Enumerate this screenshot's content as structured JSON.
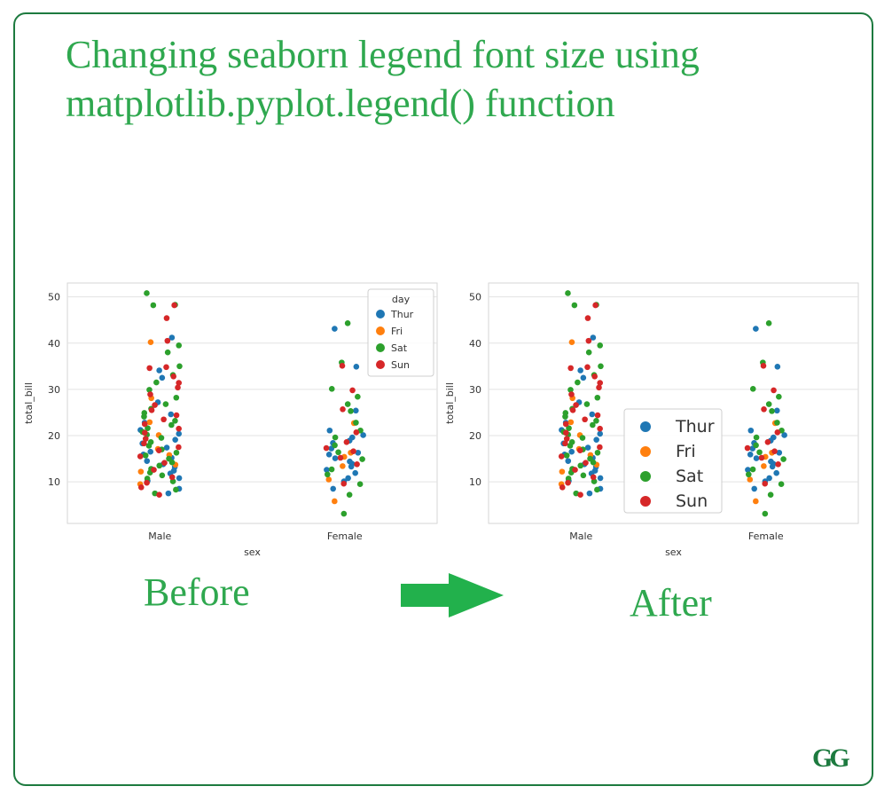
{
  "title": "Changing seaborn legend font size using matplotlib.pyplot.legend() function",
  "captions": {
    "before": "Before",
    "after": "After"
  },
  "logo": "GG",
  "colors": {
    "accent": "#2fa84f",
    "frame": "#1d7a3f",
    "arrow": "#22b14c",
    "Thur": "#1f77b4",
    "Fri": "#ff7f0e",
    "Sat": "#2ca02c",
    "Sun": "#d62728"
  },
  "chart_data": [
    {
      "type": "scatter",
      "subtype": "stripplot",
      "panel": "before",
      "xlabel": "sex",
      "ylabel": "total_bill",
      "categories": [
        "Male",
        "Female"
      ],
      "yticks": [
        10,
        20,
        30,
        40,
        50
      ],
      "ylim": [
        1,
        53
      ],
      "grid": true,
      "legend": {
        "title": "day",
        "position": "top-right",
        "size": "small",
        "entries": [
          "Thur",
          "Fri",
          "Sat",
          "Sun"
        ]
      },
      "series": [
        {
          "name": "Thur",
          "Male": [
            7.5,
            8.5,
            10.2,
            10.8,
            11.8,
            12.4,
            13.2,
            13.8,
            14.5,
            15.2,
            15.9,
            16.5,
            17.4,
            18.3,
            19.1,
            20.4,
            21.2,
            22.8,
            24.6,
            27.2,
            32.5,
            34.1,
            41.2
          ],
          "Female": [
            8.5,
            10.1,
            10.8,
            11.9,
            12.6,
            13.3,
            13.9,
            14.4,
            15.1,
            15.9,
            16.3,
            17.2,
            18.4,
            18.9,
            19.6,
            20.1,
            21.1,
            25.4,
            34.9,
            43.1
          ]
        },
        {
          "name": "Fri",
          "Male": [
            9.5,
            12.2,
            13.7,
            15.8,
            17.1,
            20.1,
            22.9,
            28.1,
            40.2
          ],
          "Female": [
            5.8,
            10.5,
            13.4,
            15.4,
            16.3,
            22.7
          ]
        },
        {
          "name": "Sat",
          "Male": [
            7.5,
            8.3,
            10.1,
            10.7,
            11.4,
            12.0,
            12.8,
            13.5,
            14.2,
            15.0,
            15.7,
            16.3,
            17.0,
            17.8,
            18.6,
            19.5,
            20.2,
            20.8,
            21.6,
            22.3,
            23.2,
            24.1,
            24.9,
            25.8,
            26.8,
            28.2,
            29.9,
            31.5,
            33.1,
            35.0,
            38.0,
            39.5,
            48.3,
            48.2,
            50.8
          ],
          "Female": [
            3.1,
            7.2,
            9.5,
            11.6,
            12.7,
            14.9,
            16.4,
            17.9,
            19.6,
            21.1,
            22.8,
            25.3,
            26.8,
            28.4,
            30.1,
            35.8,
            44.3
          ]
        },
        {
          "name": "Sun",
          "Male": [
            7.2,
            8.8,
            9.8,
            11.0,
            12.6,
            14.1,
            15.5,
            16.8,
            17.5,
            18.3,
            19.3,
            20.6,
            21.5,
            22.5,
            23.5,
            24.4,
            25.5,
            26.6,
            28.9,
            30.4,
            31.4,
            32.8,
            34.8,
            34.6,
            40.5,
            45.4,
            48.2
          ],
          "Female": [
            9.6,
            13.8,
            15.2,
            16.6,
            17.3,
            18.6,
            20.7,
            25.7,
            29.8,
            35.1
          ]
        }
      ]
    },
    {
      "type": "scatter",
      "subtype": "stripplot",
      "panel": "after",
      "xlabel": "sex",
      "ylabel": "total_bill",
      "categories": [
        "Male",
        "Female"
      ],
      "yticks": [
        10,
        20,
        30,
        40,
        50
      ],
      "ylim": [
        1,
        53
      ],
      "grid": true,
      "legend": {
        "position": "center",
        "size": "large",
        "entries": [
          "Thur",
          "Fri",
          "Sat",
          "Sun"
        ]
      },
      "series": [
        {
          "name": "Thur",
          "Male": [
            7.5,
            8.5,
            10.2,
            10.8,
            11.8,
            12.4,
            13.2,
            13.8,
            14.5,
            15.2,
            15.9,
            16.5,
            17.4,
            18.3,
            19.1,
            20.4,
            21.2,
            22.8,
            24.6,
            27.2,
            32.5,
            34.1,
            41.2
          ],
          "Female": [
            8.5,
            10.1,
            10.8,
            11.9,
            12.6,
            13.3,
            13.9,
            14.4,
            15.1,
            15.9,
            16.3,
            17.2,
            18.4,
            18.9,
            19.6,
            20.1,
            21.1,
            25.4,
            34.9,
            43.1
          ]
        },
        {
          "name": "Fri",
          "Male": [
            9.5,
            12.2,
            13.7,
            15.8,
            17.1,
            20.1,
            22.9,
            28.1,
            40.2
          ],
          "Female": [
            5.8,
            10.5,
            13.4,
            15.4,
            16.3,
            22.7
          ]
        },
        {
          "name": "Sat",
          "Male": [
            7.5,
            8.3,
            10.1,
            10.7,
            11.4,
            12.0,
            12.8,
            13.5,
            14.2,
            15.0,
            15.7,
            16.3,
            17.0,
            17.8,
            18.6,
            19.5,
            20.2,
            20.8,
            21.6,
            22.3,
            23.2,
            24.1,
            24.9,
            25.8,
            26.8,
            28.2,
            29.9,
            31.5,
            33.1,
            35.0,
            38.0,
            39.5,
            48.3,
            48.2,
            50.8
          ],
          "Female": [
            3.1,
            7.2,
            9.5,
            11.6,
            12.7,
            14.9,
            16.4,
            17.9,
            19.6,
            21.1,
            22.8,
            25.3,
            26.8,
            28.4,
            30.1,
            35.8,
            44.3
          ]
        },
        {
          "name": "Sun",
          "Male": [
            7.2,
            8.8,
            9.8,
            11.0,
            12.6,
            14.1,
            15.5,
            16.8,
            17.5,
            18.3,
            19.3,
            20.6,
            21.5,
            22.5,
            23.5,
            24.4,
            25.5,
            26.6,
            28.9,
            30.4,
            31.4,
            32.8,
            34.8,
            34.6,
            40.5,
            45.4,
            48.2
          ],
          "Female": [
            9.6,
            13.8,
            15.2,
            16.6,
            17.3,
            18.6,
            20.7,
            25.7,
            29.8,
            35.1
          ]
        }
      ]
    }
  ]
}
